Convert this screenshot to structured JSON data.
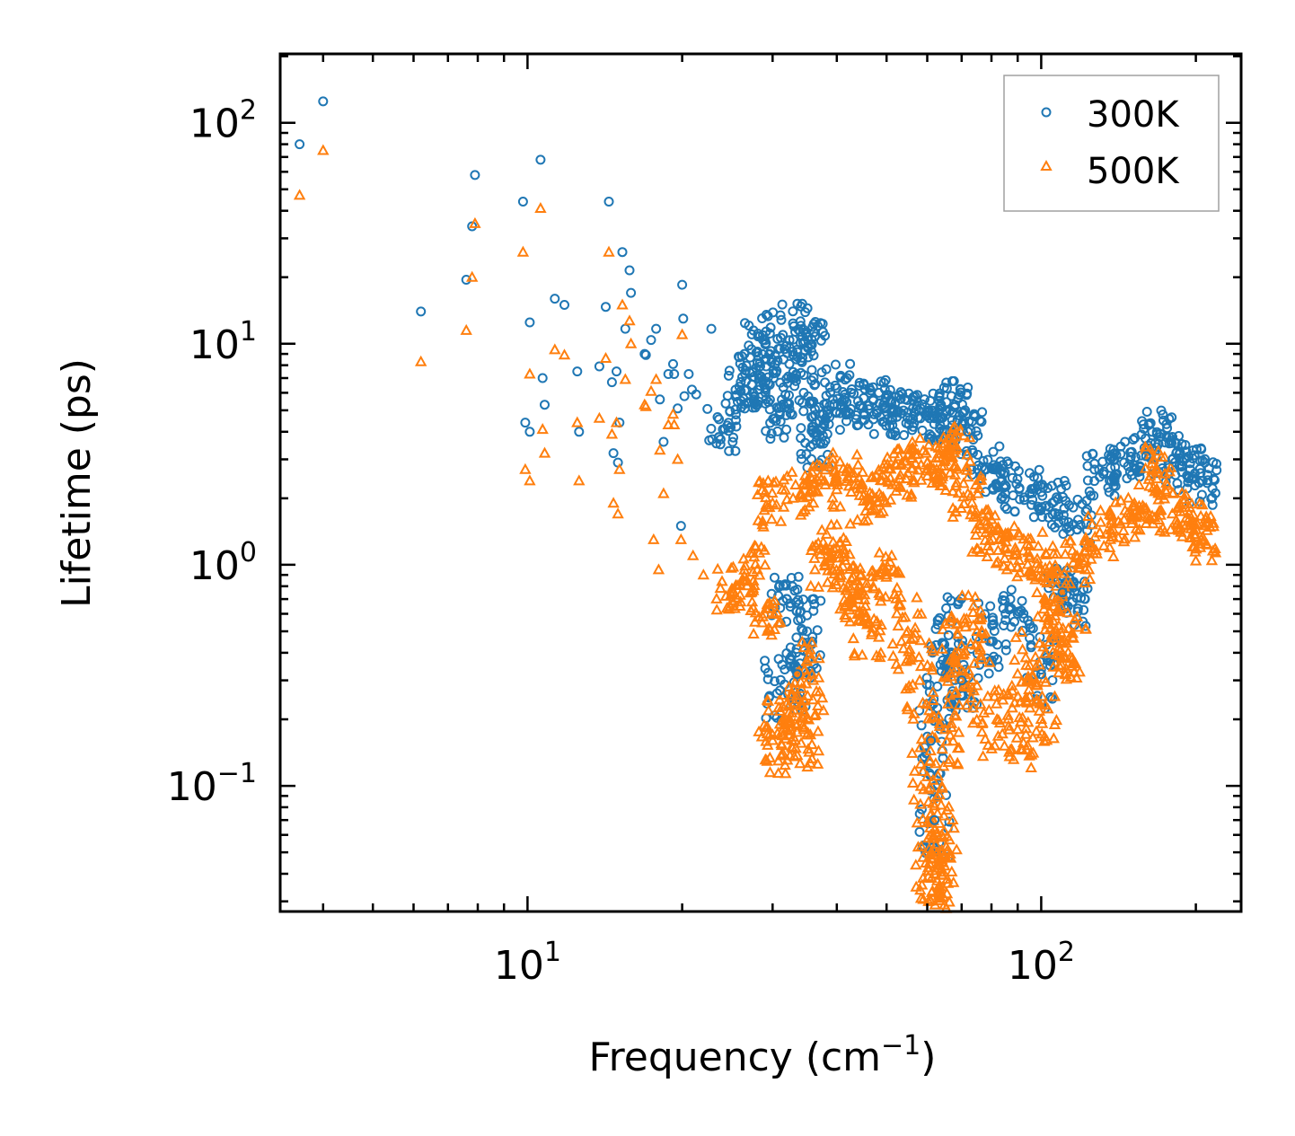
{
  "chart_data": {
    "type": "scatter",
    "xscale": "log",
    "yscale": "log",
    "xlabel": "Frequency (cm",
    "xlabel_sup": "−1",
    "xlabel_end": ")",
    "ylabel": "Lifetime (ps)",
    "xlim": [
      3.3,
      245
    ],
    "ylim": [
      0.027,
      205
    ],
    "x_ticks": [
      {
        "value": 10,
        "base": "10",
        "exp": "1"
      },
      {
        "value": 100,
        "base": "10",
        "exp": "2"
      }
    ],
    "y_ticks": [
      {
        "value": 0.1,
        "base": "10",
        "exp": "−1"
      },
      {
        "value": 1,
        "base": "10",
        "exp": "0"
      },
      {
        "value": 10,
        "base": "10",
        "exp": "1"
      },
      {
        "value": 100,
        "base": "10",
        "exp": "2"
      }
    ],
    "legend_position": "top-right",
    "series": [
      {
        "name": "300K",
        "marker": "circle",
        "color": "#1f77b4",
        "points": [
          [
            3.6,
            80
          ],
          [
            4.0,
            125
          ],
          [
            6.2,
            14
          ],
          [
            7.6,
            19.5
          ],
          [
            7.8,
            34
          ],
          [
            7.9,
            58
          ],
          [
            9.8,
            44
          ],
          [
            9.9,
            4.4
          ],
          [
            10.1,
            12.5
          ],
          [
            10.1,
            4.0
          ],
          [
            10.6,
            68
          ],
          [
            10.7,
            7.0
          ],
          [
            10.8,
            5.3
          ],
          [
            11.3,
            16
          ],
          [
            11.8,
            15
          ],
          [
            12.5,
            7.5
          ],
          [
            12.6,
            4.0
          ],
          [
            13.8,
            7.9
          ],
          [
            14.2,
            14.7
          ],
          [
            14.4,
            44
          ],
          [
            14.6,
            6.7
          ],
          [
            14.7,
            3.2
          ],
          [
            14.9,
            7.5
          ],
          [
            15.0,
            2.9
          ],
          [
            15.1,
            4.4
          ],
          [
            15.3,
            26
          ],
          [
            15.5,
            11.7
          ],
          [
            15.8,
            21.5
          ],
          [
            15.9,
            17.0
          ],
          [
            16.9,
            9.0
          ],
          [
            17.0,
            8.9
          ],
          [
            17.4,
            10.4
          ],
          [
            17.8,
            11.7
          ],
          [
            18.1,
            5.6
          ],
          [
            18.4,
            3.6
          ],
          [
            18.8,
            7.3
          ],
          [
            19.2,
            8.1
          ],
          [
            19.3,
            7.3
          ],
          [
            19.6,
            5.1
          ],
          [
            19.9,
            1.5
          ],
          [
            20.0,
            18.5
          ],
          [
            20.1,
            13
          ],
          [
            20.2,
            5.8
          ],
          [
            20.6,
            7.3
          ],
          [
            20.9,
            6.2
          ],
          [
            21.3,
            5.9
          ],
          [
            22.8,
            11.7
          ],
          [
            24.0,
            4.1
          ],
          [
            26.0,
            6.1
          ],
          [
            27.6,
            7.1
          ],
          [
            28.1,
            10.8
          ],
          [
            29.4,
            6.6
          ],
          [
            30.3,
            4.6
          ],
          [
            31.5,
            8.5
          ],
          [
            33.0,
            12.0
          ],
          [
            34.5,
            6.0
          ],
          [
            35.7,
            10.5
          ],
          [
            36.0,
            3.5
          ],
          [
            38.0,
            4.5
          ],
          [
            40.0,
            6.3
          ],
          [
            44.0,
            5.5
          ],
          [
            48.0,
            5.0
          ],
          [
            52.0,
            5.4
          ],
          [
            55.0,
            4.9
          ],
          [
            60.0,
            4.7
          ],
          [
            64.0,
            4.6
          ],
          [
            68.0,
            5.3
          ],
          [
            72.0,
            4.0
          ],
          [
            78.0,
            2.7
          ],
          [
            85.0,
            2.3
          ],
          [
            95.0,
            2.1
          ],
          [
            105.0,
            1.9
          ],
          [
            118.0,
            1.6
          ],
          [
            130.0,
            2.5
          ],
          [
            145.0,
            2.9
          ],
          [
            160.0,
            3.1
          ],
          [
            168.0,
            3.9
          ],
          [
            180.0,
            3.0
          ],
          [
            195.0,
            2.7
          ],
          [
            205.0,
            2.4
          ],
          [
            31.0,
            0.27
          ],
          [
            32.0,
            0.7
          ],
          [
            33.5,
            0.32
          ],
          [
            35.0,
            0.5
          ],
          [
            61.0,
            0.16
          ],
          [
            62.0,
            0.07
          ],
          [
            64.0,
            0.33
          ],
          [
            66.0,
            0.48
          ],
          [
            70.0,
            0.3
          ],
          [
            80.0,
            0.45
          ],
          [
            90.0,
            0.6
          ],
          [
            100.0,
            0.32
          ],
          [
            110.0,
            0.75
          ],
          [
            115.0,
            0.68
          ]
        ]
      },
      {
        "name": "500K",
        "marker": "triangle",
        "color": "#ff7f0e",
        "points": [
          [
            3.6,
            47
          ],
          [
            4.0,
            75
          ],
          [
            6.2,
            8.3
          ],
          [
            7.6,
            11.5
          ],
          [
            7.8,
            20
          ],
          [
            7.9,
            35
          ],
          [
            9.8,
            26
          ],
          [
            9.9,
            2.7
          ],
          [
            10.1,
            7.3
          ],
          [
            10.1,
            2.4
          ],
          [
            10.6,
            41
          ],
          [
            10.7,
            4.1
          ],
          [
            10.8,
            3.2
          ],
          [
            11.3,
            9.4
          ],
          [
            11.8,
            8.9
          ],
          [
            12.5,
            4.4
          ],
          [
            12.6,
            2.4
          ],
          [
            13.8,
            4.6
          ],
          [
            14.2,
            8.6
          ],
          [
            14.4,
            26
          ],
          [
            14.6,
            3.9
          ],
          [
            14.7,
            1.9
          ],
          [
            14.9,
            4.4
          ],
          [
            15.0,
            1.7
          ],
          [
            15.1,
            2.7
          ],
          [
            15.3,
            15
          ],
          [
            15.5,
            6.9
          ],
          [
            15.8,
            12.7
          ],
          [
            15.9,
            10.0
          ],
          [
            16.9,
            5.3
          ],
          [
            17.0,
            5.2
          ],
          [
            17.4,
            6.1
          ],
          [
            17.8,
            6.9
          ],
          [
            18.1,
            3.3
          ],
          [
            18.4,
            2.1
          ],
          [
            18.8,
            4.3
          ],
          [
            19.2,
            4.8
          ],
          [
            19.3,
            4.3
          ],
          [
            19.6,
            3.0
          ],
          [
            19.9,
            1.3
          ],
          [
            20.0,
            11.0
          ],
          [
            17.6,
            1.3
          ],
          [
            18.0,
            0.95
          ],
          [
            21.0,
            1.1
          ],
          [
            22.0,
            0.9
          ],
          [
            25.0,
            0.78
          ],
          [
            28.0,
            0.95
          ],
          [
            29.0,
            0.6
          ],
          [
            30.0,
            0.17
          ],
          [
            31.0,
            0.19
          ],
          [
            33.0,
            0.22
          ],
          [
            34.5,
            0.18
          ],
          [
            36.0,
            0.3
          ],
          [
            38.0,
            1.0
          ],
          [
            40.0,
            1.2
          ],
          [
            42.0,
            0.8
          ],
          [
            44.0,
            0.7
          ],
          [
            46.0,
            0.55
          ],
          [
            50.0,
            0.9
          ],
          [
            55.0,
            0.5
          ],
          [
            58.0,
            0.3
          ],
          [
            60.0,
            0.11
          ],
          [
            61.0,
            0.05
          ],
          [
            62.0,
            0.04
          ],
          [
            63.0,
            0.033
          ],
          [
            64.0,
            0.06
          ],
          [
            65.0,
            0.18
          ],
          [
            68.0,
            0.4
          ],
          [
            72.0,
            0.28
          ],
          [
            75.0,
            0.5
          ],
          [
            82.0,
            0.2
          ],
          [
            90.0,
            0.18
          ],
          [
            95.0,
            0.35
          ],
          [
            100.0,
            0.2
          ],
          [
            105.0,
            0.48
          ],
          [
            110.0,
            0.45
          ],
          [
            115.0,
            0.47
          ],
          [
            30.0,
            1.9
          ],
          [
            34.0,
            2.1
          ],
          [
            38.0,
            2.3
          ],
          [
            42.0,
            2.5
          ],
          [
            46.0,
            2.0
          ],
          [
            50.0,
            2.4
          ],
          [
            55.0,
            2.6
          ],
          [
            60.0,
            2.9
          ],
          [
            64.0,
            2.8
          ],
          [
            68.0,
            3.3
          ],
          [
            72.0,
            2.1
          ],
          [
            78.0,
            1.4
          ],
          [
            85.0,
            1.2
          ],
          [
            95.0,
            1.1
          ],
          [
            105.0,
            0.95
          ],
          [
            118.0,
            1.0
          ],
          [
            130.0,
            1.4
          ],
          [
            145.0,
            1.6
          ],
          [
            160.0,
            1.8
          ],
          [
            168.0,
            2.7
          ],
          [
            180.0,
            1.7
          ],
          [
            195.0,
            1.5
          ],
          [
            205.0,
            1.3
          ]
        ]
      }
    ]
  }
}
